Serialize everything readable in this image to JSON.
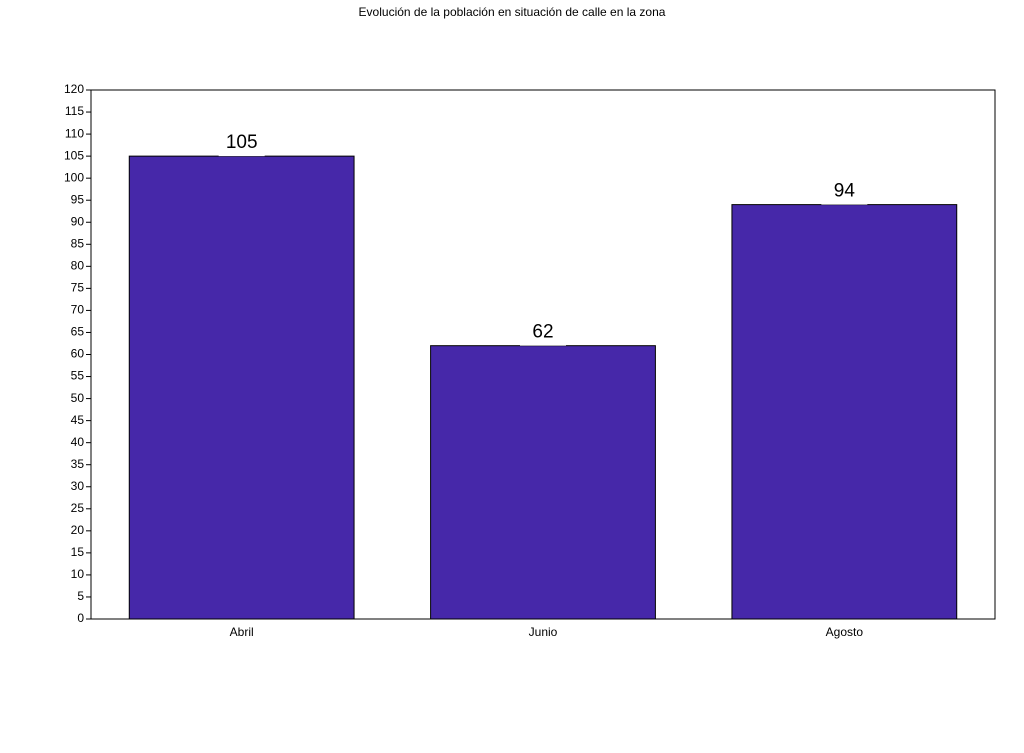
{
  "chart_data": {
    "type": "bar",
    "title": "Evolución de la población en situación de calle en la zona",
    "categories": [
      "Abril",
      "Junio",
      "Agosto"
    ],
    "values": [
      105,
      62,
      94
    ],
    "color": "#4628a9",
    "ylim": [
      0,
      120
    ],
    "yticks": [
      0,
      5,
      10,
      15,
      20,
      25,
      30,
      35,
      40,
      45,
      50,
      55,
      60,
      65,
      70,
      75,
      80,
      85,
      90,
      95,
      100,
      105,
      110,
      115,
      120
    ],
    "grid": false
  }
}
